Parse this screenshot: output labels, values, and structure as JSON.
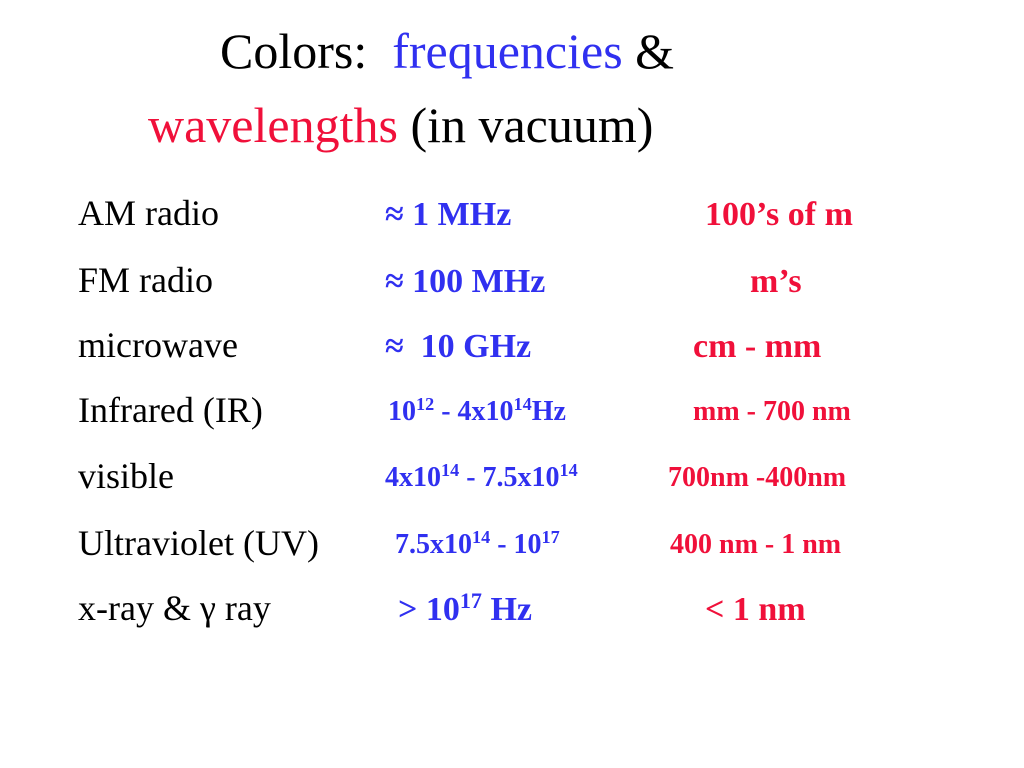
{
  "title": {
    "line1": [
      {
        "text": "Colors:  ",
        "color": "black"
      },
      {
        "text": "frequencies",
        "color": "blue"
      },
      {
        "text": " &",
        "color": "black"
      }
    ],
    "line2": [
      {
        "text": "wavelengths",
        "color": "red"
      },
      {
        "text": " (in vacuum)",
        "color": "black"
      }
    ]
  },
  "rows": [
    {
      "name": "AM radio",
      "frequency": [
        {
          "text": "≈ 1 MHz"
        }
      ],
      "wavelength": "100’s of m"
    },
    {
      "name": "FM radio",
      "frequency": [
        {
          "text": "≈ 100 MHz"
        }
      ],
      "wavelength": "m’s"
    },
    {
      "name": "microwave",
      "frequency": [
        {
          "text": "≈  10 GHz"
        }
      ],
      "wavelength": "cm - mm"
    },
    {
      "name": "Infrared (IR)",
      "frequency": [
        {
          "text": "10"
        },
        {
          "sup": "12"
        },
        {
          "text": " - 4x10"
        },
        {
          "sup": "14"
        },
        {
          "text": "Hz"
        }
      ],
      "wavelength": "mm - 700 nm"
    },
    {
      "name": "visible",
      "frequency": [
        {
          "text": "4x10"
        },
        {
          "sup": "14"
        },
        {
          "text": " - 7.5x10"
        },
        {
          "sup": "14"
        }
      ],
      "wavelength": "700nm -400nm"
    },
    {
      "name": "Ultraviolet (UV)",
      "frequency": [
        {
          "text": "7.5x10"
        },
        {
          "sup": "14"
        },
        {
          "text": " - 10"
        },
        {
          "sup": "17"
        }
      ],
      "wavelength": "400 nm - 1 nm"
    },
    {
      "name": "x-ray & γ ray",
      "frequency": [
        {
          "text": "> 10"
        },
        {
          "sup": "17"
        },
        {
          "text": " Hz"
        }
      ],
      "wavelength": "< 1 nm"
    }
  ]
}
